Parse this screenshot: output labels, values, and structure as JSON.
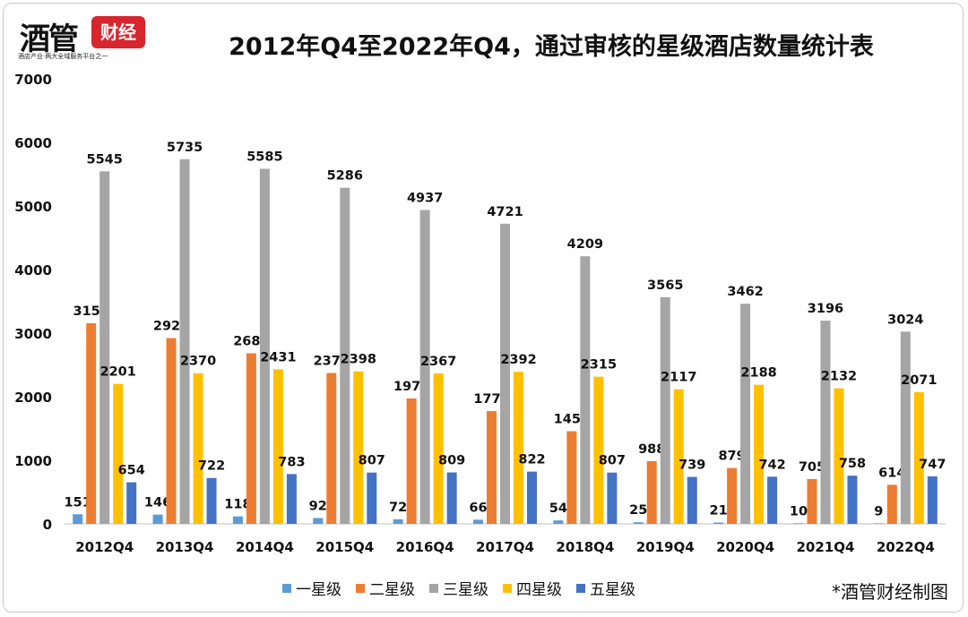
{
  "logo": {
    "brand_main": "酒管",
    "brand_badge": "财经",
    "slogan": "酒店产业·两大全域服务平台之一"
  },
  "credit": "*酒管财经制图",
  "chart_data": {
    "type": "bar",
    "title": "2012年Q4至2022年Q4，通过审核的星级酒店数量统计表",
    "xlabel": "",
    "ylabel": "",
    "ylim": [
      0,
      7000
    ],
    "yticks": [
      0,
      1000,
      2000,
      3000,
      4000,
      5000,
      6000,
      7000
    ],
    "grid": false,
    "legend_position": "bottom",
    "categories": [
      "2012Q4",
      "2013Q4",
      "2014Q4",
      "2015Q4",
      "2016Q4",
      "2017Q4",
      "2018Q4",
      "2019Q4",
      "2020Q4",
      "2021Q4",
      "2022Q4"
    ],
    "series": [
      {
        "name": "一星级",
        "color": "#5b9bd5",
        "values": [
          151,
          146,
          118,
          92,
          72,
          66,
          54,
          25,
          21,
          10,
          9
        ]
      },
      {
        "name": "二星级",
        "color": "#ed7d31",
        "values": [
          3155,
          2922,
          2683,
          2373,
          1972,
          1774,
          1457,
          988,
          879,
          705,
          614
        ]
      },
      {
        "name": "三星级",
        "color": "#a5a5a5",
        "values": [
          5545,
          5735,
          5585,
          5286,
          4937,
          4721,
          4209,
          3565,
          3462,
          3196,
          3024
        ]
      },
      {
        "name": "四星级",
        "color": "#ffc000",
        "values": [
          2201,
          2370,
          2431,
          2398,
          2367,
          2392,
          2315,
          2117,
          2188,
          2132,
          2071
        ]
      },
      {
        "name": "五星级",
        "color": "#4472c4",
        "values": [
          654,
          722,
          783,
          807,
          809,
          822,
          807,
          739,
          742,
          758,
          747
        ]
      }
    ]
  }
}
